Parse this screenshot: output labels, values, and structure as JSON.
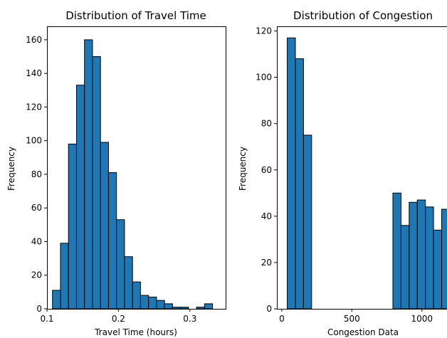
{
  "chart_data": [
    {
      "type": "bar",
      "title": "Distribution of Travel Time",
      "xlabel": "Travel Time (hours)",
      "ylabel": "Frequency",
      "xlim": [
        0.1,
        0.35
      ],
      "ylim": [
        0,
        168
      ],
      "xticks": [
        0.1,
        0.2,
        0.3
      ],
      "xtick_labels": [
        "0.1",
        "0.2",
        "0.3"
      ],
      "yticks": [
        0,
        20,
        40,
        60,
        80,
        100,
        120,
        140,
        160
      ],
      "bin_width": 0.0112,
      "bins": [
        {
          "x": 0.1077,
          "value": 11
        },
        {
          "x": 0.1189,
          "value": 39
        },
        {
          "x": 0.1301,
          "value": 98
        },
        {
          "x": 0.1413,
          "value": 133
        },
        {
          "x": 0.1525,
          "value": 160
        },
        {
          "x": 0.1637,
          "value": 150
        },
        {
          "x": 0.1749,
          "value": 99
        },
        {
          "x": 0.1861,
          "value": 81
        },
        {
          "x": 0.1973,
          "value": 53
        },
        {
          "x": 0.2085,
          "value": 31
        },
        {
          "x": 0.2197,
          "value": 16
        },
        {
          "x": 0.2309,
          "value": 8
        },
        {
          "x": 0.2421,
          "value": 7
        },
        {
          "x": 0.2533,
          "value": 5
        },
        {
          "x": 0.2645,
          "value": 3
        },
        {
          "x": 0.2757,
          "value": 1
        },
        {
          "x": 0.2869,
          "value": 1
        },
        {
          "x": 0.2981,
          "value": 0
        },
        {
          "x": 0.3093,
          "value": 1
        },
        {
          "x": 0.3205,
          "value": 3
        }
      ]
    },
    {
      "type": "bar",
      "title": "Distribution of Congestion",
      "xlabel": "Congestion Data",
      "ylabel": "Frequency",
      "xlim": [
        -35,
        1240
      ],
      "ylim": [
        0,
        122
      ],
      "xticks": [
        0,
        500,
        1000
      ],
      "xtick_labels": [
        "0",
        "500",
        "1000"
      ],
      "yticks": [
        0,
        20,
        40,
        60,
        80,
        100,
        120
      ],
      "bin_width": 58,
      "bins": [
        {
          "x": 39,
          "value": 117
        },
        {
          "x": 97,
          "value": 108
        },
        {
          "x": 155,
          "value": 75
        },
        {
          "x": 213,
          "value": 0
        },
        {
          "x": 271,
          "value": 0
        },
        {
          "x": 329,
          "value": 0
        },
        {
          "x": 387,
          "value": 0
        },
        {
          "x": 445,
          "value": 0
        },
        {
          "x": 503,
          "value": 0
        },
        {
          "x": 561,
          "value": 0
        },
        {
          "x": 619,
          "value": 0
        },
        {
          "x": 677,
          "value": 0
        },
        {
          "x": 735,
          "value": 0
        },
        {
          "x": 793,
          "value": 50
        },
        {
          "x": 851,
          "value": 36
        },
        {
          "x": 909,
          "value": 46
        },
        {
          "x": 967,
          "value": 47
        },
        {
          "x": 1025,
          "value": 44
        },
        {
          "x": 1083,
          "value": 34
        },
        {
          "x": 1141,
          "value": 43
        }
      ]
    }
  ]
}
